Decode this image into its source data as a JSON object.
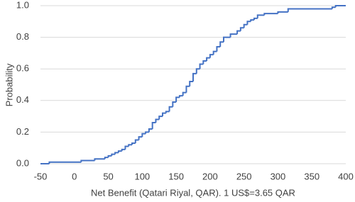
{
  "chart_data": {
    "type": "step",
    "x_label": "Net Benefit (Qatari Riyal, QAR). 1 US$=3.65 QAR",
    "y_label": "Probability",
    "x": [
      -50,
      -37,
      10,
      30,
      45,
      50,
      55,
      60,
      65,
      70,
      75,
      80,
      85,
      90,
      95,
      100,
      105,
      110,
      115,
      120,
      125,
      130,
      135,
      140,
      145,
      150,
      155,
      160,
      165,
      170,
      175,
      180,
      185,
      190,
      195,
      200,
      205,
      210,
      215,
      220,
      230,
      240,
      245,
      250,
      255,
      260,
      265,
      270,
      280,
      300,
      315,
      380,
      385
    ],
    "values": [
      0,
      0.01,
      0.02,
      0.03,
      0.04,
      0.05,
      0.06,
      0.07,
      0.08,
      0.09,
      0.11,
      0.12,
      0.13,
      0.15,
      0.17,
      0.19,
      0.2,
      0.22,
      0.26,
      0.28,
      0.3,
      0.32,
      0.33,
      0.36,
      0.39,
      0.42,
      0.43,
      0.45,
      0.49,
      0.52,
      0.57,
      0.6,
      0.63,
      0.65,
      0.67,
      0.69,
      0.71,
      0.74,
      0.77,
      0.8,
      0.82,
      0.84,
      0.86,
      0.88,
      0.9,
      0.91,
      0.92,
      0.94,
      0.95,
      0.96,
      0.98,
      0.99,
      1
    ],
    "color": "#4472c4",
    "xlim": [
      -50,
      400
    ],
    "xticks": [
      -50,
      0,
      50,
      100,
      150,
      200,
      250,
      300,
      350,
      400
    ],
    "ylim": [
      0,
      1
    ],
    "yticks": [
      {
        "value": 0,
        "label": "0.0"
      },
      0.2,
      0.4,
      0.6,
      0.8,
      {
        "value": 1,
        "label": "1.0"
      }
    ],
    "grid": true
  }
}
